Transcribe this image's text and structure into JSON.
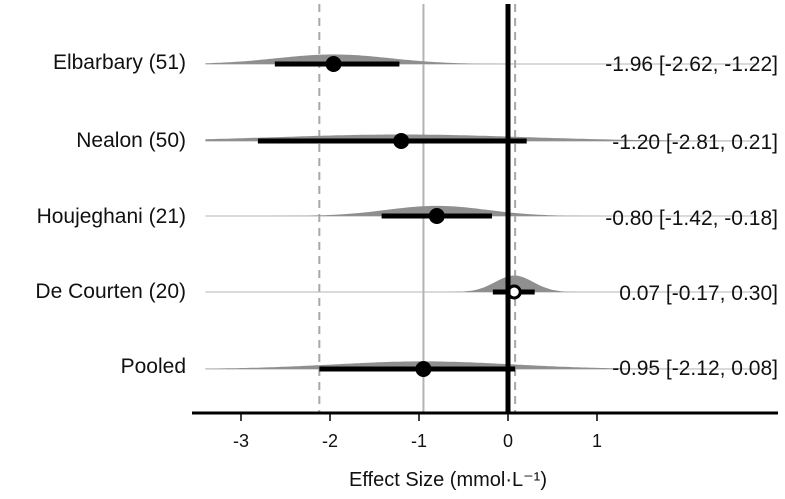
{
  "chart_data": {
    "type": "forest",
    "xlabel": "Effect Size (mmol·L⁻¹)",
    "xlim": [
      -3.6,
      2.9
    ],
    "xticks": [
      -3,
      -2,
      -1,
      0,
      1
    ],
    "xtick_labels": [
      "-3",
      "-2",
      "-1",
      "0",
      "1"
    ],
    "reference_lines": {
      "null_effect": 0,
      "pooled_estimate": -0.95,
      "pooled_ci_lower": -2.12,
      "pooled_ci_upper": 0.08
    },
    "studies": [
      {
        "label": "Elbarbary (51)",
        "estimate": -1.96,
        "ci_lower": -2.62,
        "ci_upper": -1.22,
        "annotation": "-1.96 [-2.62, -1.22]",
        "marker": "filled"
      },
      {
        "label": "Nealon (50)",
        "estimate": -1.2,
        "ci_lower": -2.81,
        "ci_upper": 0.21,
        "annotation": "-1.20 [-2.81, 0.21]",
        "marker": "filled"
      },
      {
        "label": "Houjeghani (21)",
        "estimate": -0.8,
        "ci_lower": -1.42,
        "ci_upper": -0.18,
        "annotation": "-0.80 [-1.42, -0.18]",
        "marker": "filled"
      },
      {
        "label": "De Courten (20)",
        "estimate": 0.07,
        "ci_lower": -0.17,
        "ci_upper": 0.3,
        "annotation": "0.07 [-0.17, 0.30]",
        "marker": "open"
      },
      {
        "label": "Pooled",
        "estimate": -0.95,
        "ci_lower": -2.12,
        "ci_upper": 0.08,
        "annotation": "-0.95 [-2.12, 0.08]",
        "marker": "filled"
      }
    ],
    "colors": {
      "density": "#8f8f8f",
      "density_tail": "#b5b5b5",
      "interval": "#000000",
      "marker": "#000000",
      "pooled_line": "#b3b3b3",
      "ci_lines": "#a8a8a8",
      "axis": "#000000"
    }
  }
}
